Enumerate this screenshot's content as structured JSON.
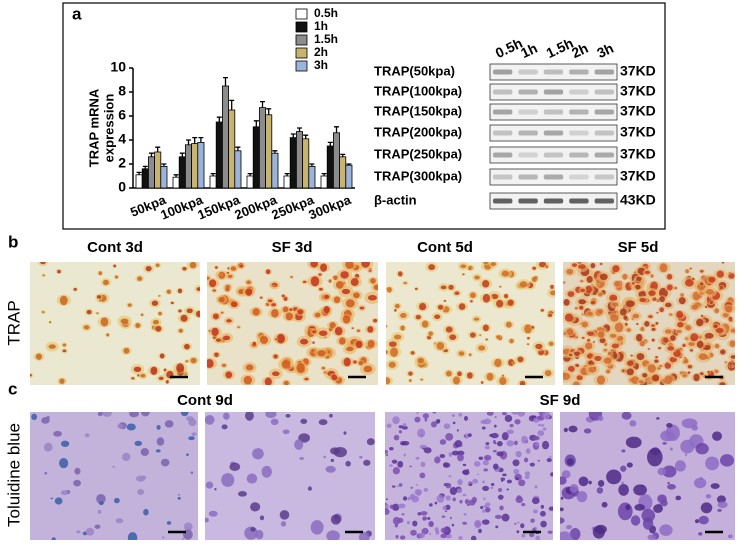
{
  "chart_data": {
    "type": "bar",
    "panel": "a",
    "ylabel": [
      "TRAP mRNA",
      "expression"
    ],
    "categories": [
      "50kpa",
      "100kpa",
      "150kpa",
      "200kpa",
      "250kpa",
      "300kpa"
    ],
    "series": [
      {
        "name": "0.5h",
        "color": "#ffffff",
        "values": [
          1.1,
          0.9,
          1.0,
          1.0,
          1.0,
          1.0
        ],
        "errors": [
          0.2,
          0.2,
          0.2,
          0.2,
          0.2,
          0.2
        ]
      },
      {
        "name": "1h",
        "color": "#111111",
        "values": [
          1.6,
          2.6,
          5.5,
          5.1,
          4.2,
          3.5
        ],
        "errors": [
          0.2,
          0.3,
          0.4,
          0.5,
          0.3,
          0.3
        ]
      },
      {
        "name": "1.5h",
        "color": "#8c8c8c",
        "values": [
          2.6,
          3.6,
          8.5,
          6.7,
          4.7,
          4.6
        ],
        "errors": [
          0.3,
          0.4,
          0.7,
          0.5,
          0.3,
          0.5
        ]
      },
      {
        "name": "2h",
        "color": "#c8b46e",
        "values": [
          3.0,
          3.7,
          6.5,
          6.1,
          4.1,
          2.6
        ],
        "errors": [
          0.4,
          0.5,
          0.8,
          0.5,
          0.3,
          0.2
        ]
      },
      {
        "name": "3h",
        "color": "#9bb4dc",
        "values": [
          1.8,
          3.8,
          3.1,
          2.9,
          1.8,
          1.9
        ],
        "errors": [
          0.2,
          0.4,
          0.3,
          0.2,
          0.2,
          0.1
        ]
      }
    ],
    "ylim": [
      0,
      10
    ],
    "yticks": [
      0,
      2,
      4,
      6,
      8,
      10
    ],
    "grid": false
  },
  "blot": {
    "lanes": [
      "0.5h",
      "1h",
      "1.5h",
      "2h",
      "3h"
    ],
    "rows": [
      {
        "label": "TRAP(50kpa)",
        "size": "37KD"
      },
      {
        "label": "TRAP(100kpa)",
        "size": "37KD"
      },
      {
        "label": "TRAP(150kpa)",
        "size": "37KD"
      },
      {
        "label": "TRAP(200kpa)",
        "size": "37KD"
      },
      {
        "label": "TRAP(250kpa)",
        "size": "37KD"
      },
      {
        "label": "TRAP(300kpa)",
        "size": "37KD"
      },
      {
        "label": "β-actin",
        "size": "43KD"
      }
    ]
  },
  "panel_b": {
    "label": "b",
    "row_label": "TRAP",
    "titles": [
      "Cont 3d",
      "SF 3d",
      "Cont 5d",
      "SF 5d"
    ]
  },
  "panel_c": {
    "label": "c",
    "row_label": "Toluidine blue",
    "titles": [
      "Cont 9d",
      "SF 9d"
    ]
  }
}
